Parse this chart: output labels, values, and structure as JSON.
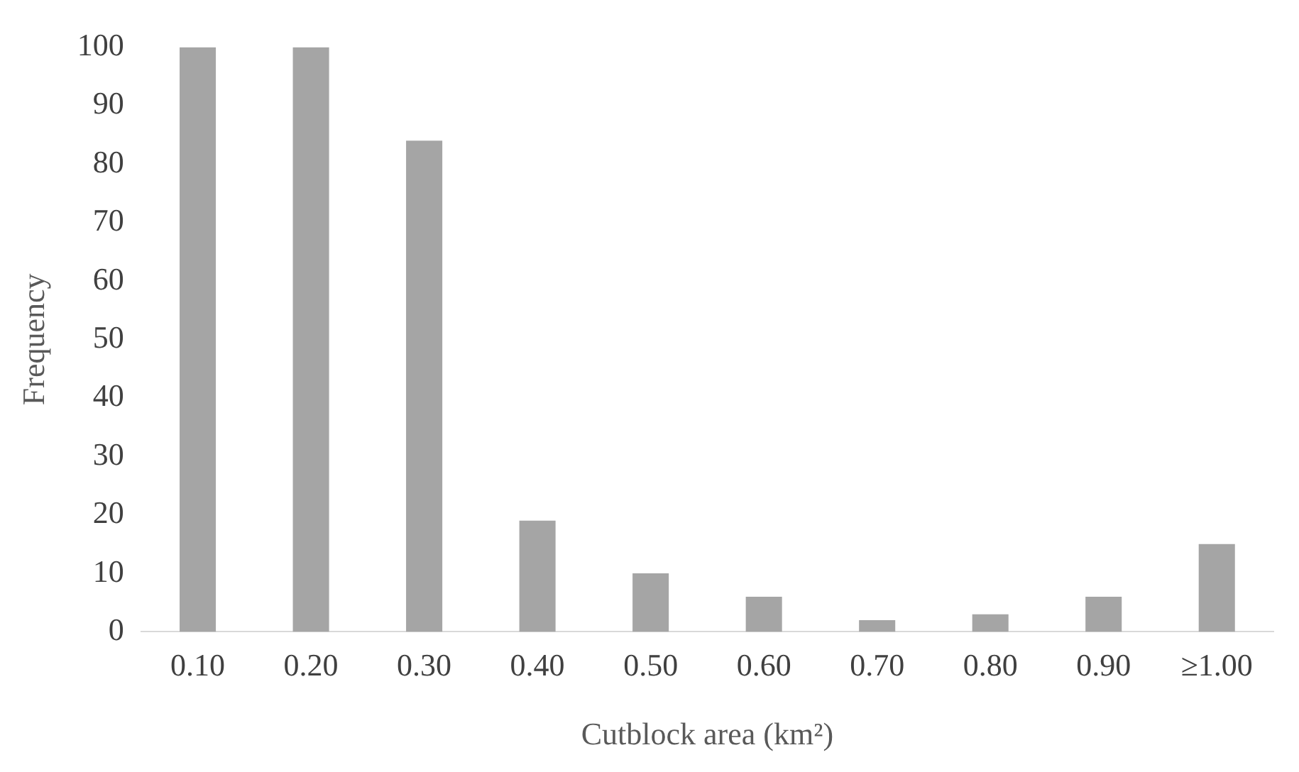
{
  "chart_data": {
    "type": "bar",
    "xlabel": "Cutblock area (km²)",
    "ylabel": "Frequency",
    "categories": [
      "0.10",
      "0.20",
      "0.30",
      "0.40",
      "0.50",
      "0.60",
      "0.70",
      "0.80",
      "0.90",
      "≥1.00"
    ],
    "values": [
      100,
      100,
      84,
      19,
      10,
      6,
      2,
      3,
      6,
      15
    ],
    "color": "#a5a5a5",
    "ylim": [
      0,
      100
    ],
    "yticks": [
      0,
      10,
      20,
      30,
      40,
      50,
      60,
      70,
      80,
      90,
      100
    ],
    "grid": false,
    "legend": false
  }
}
